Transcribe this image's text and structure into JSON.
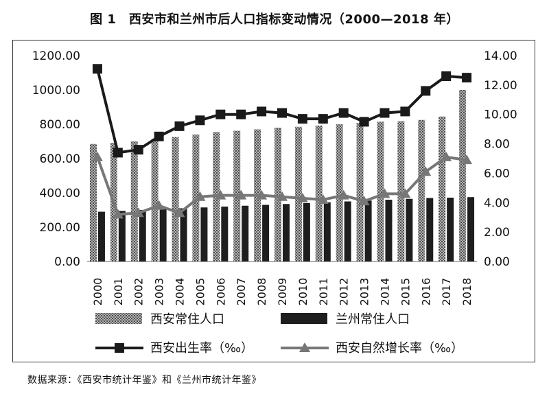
{
  "title": "图 1　西安市和兰州市后人口指标变动情况（2000—2018 年）",
  "source": "数据来源：《西安市统计年鉴》和《兰州市统计年鉴》",
  "chart_data": {
    "type": "bar",
    "categories": [
      "2000",
      "2001",
      "2002",
      "2003",
      "2004",
      "2005",
      "2006",
      "2007",
      "2008",
      "2009",
      "2010",
      "2011",
      "2012",
      "2013",
      "2014",
      "2015",
      "2016",
      "2017",
      "2018"
    ],
    "left_axis": {
      "ticks": [
        "0.00",
        "200.00",
        "400.00",
        "600.00",
        "800.00",
        "1000.00",
        "1200.00"
      ],
      "ylim": [
        0,
        1200
      ]
    },
    "right_axis": {
      "ticks": [
        "0.00",
        "2.00",
        "4.00",
        "6.00",
        "8.00",
        "10.00",
        "12.00",
        "14.00"
      ],
      "ylim": [
        0,
        14
      ]
    },
    "series": [
      {
        "name": "西安常住人口",
        "kind": "bar",
        "axis": "left",
        "color": "#8c8c8c",
        "values": [
          685,
          692,
          700,
          715,
          725,
          740,
          755,
          762,
          770,
          780,
          785,
          792,
          800,
          808,
          815,
          818,
          825,
          845,
          1000
        ]
      },
      {
        "name": "兰州常住人口",
        "kind": "bar",
        "axis": "left",
        "color": "#1e1e1e",
        "values": [
          290,
          295,
          300,
          305,
          310,
          315,
          320,
          325,
          330,
          335,
          340,
          345,
          350,
          355,
          360,
          365,
          370,
          372,
          375
        ]
      },
      {
        "name": "西安出生率（‰）",
        "kind": "line",
        "axis": "right",
        "color": "#1a1a1a",
        "marker": "square",
        "values": [
          13.1,
          7.4,
          7.6,
          8.5,
          9.2,
          9.6,
          10.0,
          10.0,
          10.2,
          10.1,
          9.7,
          9.7,
          10.1,
          9.5,
          10.1,
          10.2,
          11.6,
          12.6,
          12.5
        ]
      },
      {
        "name": "西安自然增长率（‰）",
        "kind": "line",
        "axis": "right",
        "color": "#777777",
        "marker": "triangle",
        "values": [
          7.1,
          3.2,
          3.3,
          3.8,
          3.3,
          4.4,
          4.5,
          4.5,
          4.5,
          4.4,
          4.3,
          4.2,
          4.5,
          4.1,
          4.6,
          4.6,
          6.1,
          7.1,
          6.9
        ]
      }
    ],
    "legend": [
      "西安常住人口",
      "兰州常住人口",
      "西安出生率（‰）",
      "西安自然增长率（‰）"
    ],
    "legend_position": "bottom",
    "grid": false
  }
}
